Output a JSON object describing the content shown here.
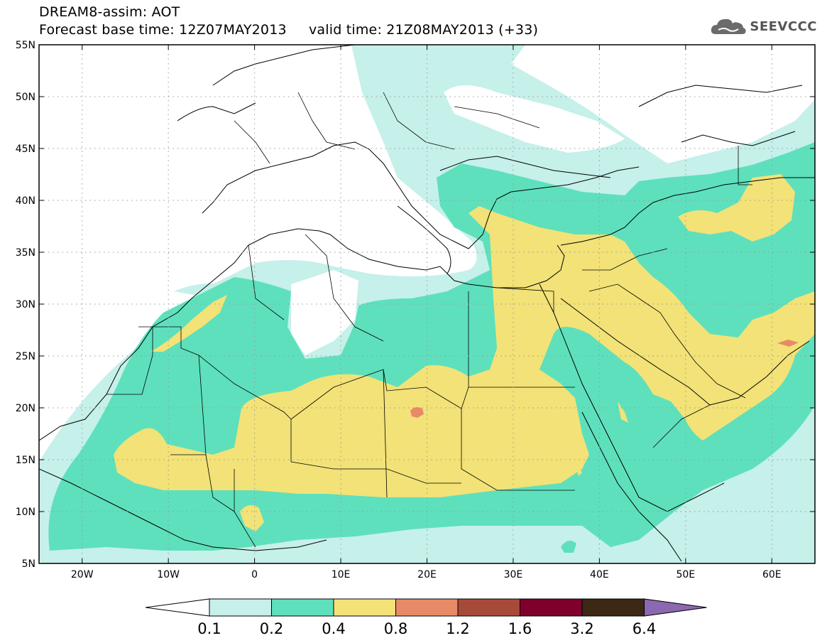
{
  "header": {
    "line1": "DREAM8-assim: AOT",
    "line2": "Forecast base time: 12Z07MAY2013     valid time: 21Z08MAY2013 (+33)",
    "logo_text": "SEEVCCC"
  },
  "map": {
    "lon_range": [
      -25,
      65
    ],
    "lat_range": [
      5,
      55
    ],
    "lat_ticks": [
      "5N",
      "10N",
      "15N",
      "20N",
      "25N",
      "30N",
      "35N",
      "40N",
      "45N",
      "50N",
      "55N"
    ],
    "lon_ticks": [
      "20W",
      "10W",
      "0",
      "10E",
      "20E",
      "30E",
      "40E",
      "50E",
      "60E"
    ],
    "grid": "dotted"
  },
  "colorbar": {
    "levels": [
      "0.1",
      "0.2",
      "0.4",
      "0.8",
      "1.2",
      "1.6",
      "3.2",
      "6.4"
    ],
    "colors": [
      "#ffffff",
      "#c6f0ea",
      "#5ee0bd",
      "#f2e277",
      "#e88a68",
      "#a84a3a",
      "#80002c",
      "#3c2814",
      "#8c68b0"
    ]
  },
  "icons": {
    "logo": "cloud-icon"
  }
}
